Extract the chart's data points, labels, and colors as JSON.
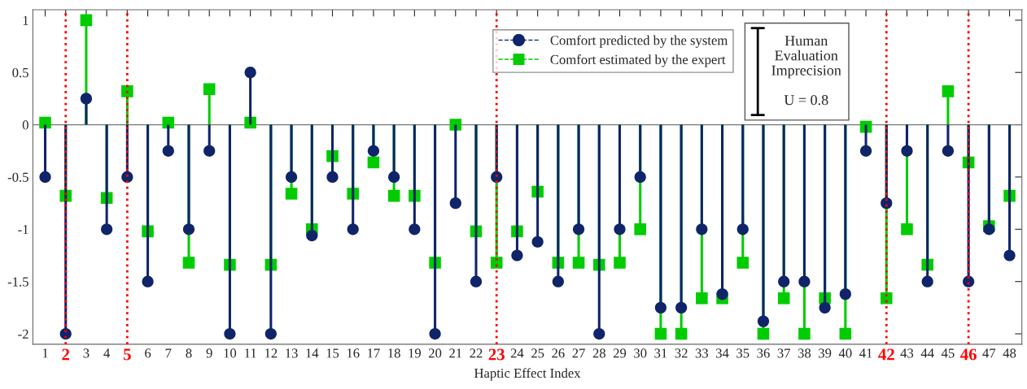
{
  "chart_data": {
    "type": "lollipop",
    "xlabel": "Haptic Effect Index",
    "categories": [
      "1",
      "2",
      "3",
      "4",
      "5",
      "6",
      "7",
      "8",
      "9",
      "10",
      "11",
      "12",
      "13",
      "14",
      "15",
      "16",
      "17",
      "18",
      "19",
      "20",
      "21",
      "22",
      "23",
      "24",
      "25",
      "26",
      "27",
      "28",
      "29",
      "30",
      "31",
      "32",
      "33",
      "34",
      "35",
      "36",
      "37",
      "38",
      "39",
      "40",
      "41",
      "42",
      "43",
      "44",
      "45",
      "46",
      "47",
      "48"
    ],
    "series": [
      {
        "name": "Comfort estimated by the expert",
        "color": "#00cc00",
        "marker": "square",
        "values": [
          0.02,
          -0.68,
          1.0,
          -0.7,
          0.32,
          -1.02,
          0.02,
          -1.32,
          0.34,
          -1.34,
          0.02,
          -1.34,
          -0.66,
          -1.0,
          -0.3,
          -0.66,
          -0.36,
          -0.68,
          -0.68,
          -1.32,
          0.0,
          -1.02,
          -1.32,
          -1.02,
          -0.64,
          -1.32,
          -1.32,
          -1.34,
          -1.32,
          -1.0,
          -2.0,
          -2.0,
          -1.66,
          -1.66,
          -1.32,
          -2.0,
          -1.66,
          -2.0,
          -1.66,
          -2.0,
          -0.02,
          -1.66,
          -1.0,
          -1.34,
          0.32,
          -0.36,
          -0.97,
          -0.68
        ]
      },
      {
        "name": "Comfort predicted by the system",
        "color": "#0f2469",
        "marker": "circle",
        "values": [
          -0.5,
          -2.0,
          0.25,
          -1.0,
          -0.5,
          -1.5,
          -0.25,
          -1.0,
          -0.25,
          -2.0,
          0.5,
          -2.0,
          -0.5,
          -1.06,
          -0.5,
          -1.0,
          -0.25,
          -0.5,
          -1.0,
          -2.0,
          -0.75,
          -1.5,
          -0.5,
          -1.25,
          -1.12,
          -1.5,
          -1.0,
          -2.0,
          -1.0,
          -0.5,
          -1.75,
          -1.75,
          -1.0,
          -1.62,
          -1.0,
          -1.88,
          -1.5,
          -1.5,
          -1.75,
          -1.62,
          -0.25,
          -0.75,
          -0.25,
          -1.5,
          -0.25,
          -1.5,
          -1.0,
          -1.25
        ]
      }
    ],
    "ylim": [
      -2.1,
      1.1
    ],
    "yticks": [
      -2,
      -1.5,
      -1,
      -0.5,
      0,
      0.5,
      1
    ],
    "ref_lines": [
      {
        "axis": "x",
        "value": "2",
        "color": "#ff0000",
        "line_style": "dotted"
      },
      {
        "axis": "x",
        "value": "5",
        "color": "#ff0000",
        "line_style": "dotted"
      },
      {
        "axis": "x",
        "value": "23",
        "color": "#ff0000",
        "line_style": "dotted"
      },
      {
        "axis": "x",
        "value": "42",
        "color": "#ff0000",
        "line_style": "dotted"
      },
      {
        "axis": "x",
        "value": "46",
        "color": "#ff0000",
        "line_style": "dotted"
      }
    ],
    "annotations": [
      "Human\nEvaluation\nImprecision\n\nU = 0.8"
    ],
    "legend": "top",
    "grid": false
  }
}
